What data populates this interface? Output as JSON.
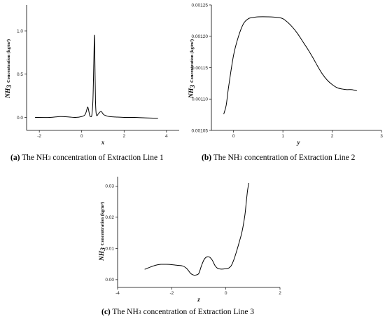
{
  "chart_data": [
    {
      "type": "line",
      "caption_letter": "(a)",
      "caption_pre": "The NH",
      "caption_sub": "3",
      "caption_post": " concentration of Extraction Line 1",
      "xlabel": "x",
      "ylabel_main": "NH",
      "ylabel_sub": "3",
      "ylabel_rest": "Concentration (kg/m³)",
      "xlim": [
        -2.6,
        4.6
      ],
      "ylim": [
        -0.15,
        1.3
      ],
      "xticks": [
        -2,
        0,
        2,
        4
      ],
      "yticks": [
        0.0,
        0.5,
        1.0
      ],
      "ytick_labels": [
        "0.0",
        "0.5",
        "1.0"
      ],
      "series": [
        {
          "x": [
            -2.2,
            -1.5,
            -1.0,
            -0.6,
            -0.3,
            0.0,
            0.15,
            0.22,
            0.28,
            0.33,
            0.38,
            0.43,
            0.48,
            0.53,
            0.57,
            0.6,
            0.62,
            0.65,
            0.68,
            0.72,
            0.78,
            0.85,
            0.92,
            0.98,
            1.05,
            1.15,
            1.3,
            1.6,
            2.0,
            2.5,
            3.0,
            3.6
          ],
          "y": [
            0.0,
            0.0,
            0.01,
            0.005,
            0.0,
            0.01,
            0.03,
            0.07,
            0.12,
            0.08,
            0.02,
            0.01,
            0.03,
            0.2,
            0.62,
            0.95,
            0.7,
            0.2,
            0.05,
            0.02,
            0.04,
            0.06,
            0.07,
            0.05,
            0.03,
            0.02,
            0.01,
            0.005,
            0.0,
            0.0,
            -0.005,
            -0.01
          ]
        }
      ]
    },
    {
      "type": "line",
      "caption_letter": "(b)",
      "caption_pre": "The NH",
      "caption_sub": "3",
      "caption_post": " concentration of Extraction Line 2",
      "xlabel": "y",
      "ylabel_main": "NH",
      "ylabel_sub": "3",
      "ylabel_rest": "Concentration (kg/m³)",
      "xlim": [
        -0.45,
        3.0
      ],
      "ylim": [
        0.00105,
        0.00125
      ],
      "xticks": [
        0,
        1,
        2,
        3
      ],
      "yticks": [
        0.00105,
        0.0011,
        0.00115,
        0.0012,
        0.00125
      ],
      "ytick_labels": [
        "0.00105",
        "0.00110",
        "0.00115",
        "0.00120",
        "0.00125"
      ],
      "series": [
        {
          "x": [
            -0.2,
            -0.15,
            -0.1,
            0.0,
            0.1,
            0.2,
            0.3,
            0.4,
            0.5,
            0.7,
            0.9,
            1.0,
            1.1,
            1.2,
            1.3,
            1.4,
            1.5,
            1.6,
            1.7,
            1.8,
            1.9,
            2.0,
            2.1,
            2.2,
            2.3,
            2.4,
            2.5
          ],
          "y": [
            0.001076,
            0.00109,
            0.00112,
            0.00117,
            0.0012,
            0.00122,
            0.001228,
            0.00123,
            0.001231,
            0.001231,
            0.00123,
            0.001228,
            0.001222,
            0.001214,
            0.001204,
            0.001192,
            0.00118,
            0.001167,
            0.001153,
            0.00114,
            0.00113,
            0.001123,
            0.001118,
            0.001116,
            0.001115,
            0.001115,
            0.001113
          ]
        }
      ]
    },
    {
      "type": "line",
      "caption_letter": "(c)",
      "caption_pre": "The NH",
      "caption_sub": "3",
      "caption_post": " concentration of Extraction Line 3",
      "xlabel": "z",
      "ylabel_main": "NH",
      "ylabel_sub": "3",
      "ylabel_rest": "Concentration (kg/m³)",
      "xlim": [
        -4.0,
        2.0
      ],
      "ylim": [
        -0.0025,
        0.033
      ],
      "xticks": [
        -4,
        -2,
        0,
        2
      ],
      "yticks": [
        0.0,
        0.01,
        0.02,
        0.03
      ],
      "ytick_labels": [
        "0.00",
        "0.01",
        "0.02",
        "0.03"
      ],
      "series": [
        {
          "x": [
            -3.0,
            -2.8,
            -2.6,
            -2.4,
            -2.2,
            -2.0,
            -1.8,
            -1.6,
            -1.45,
            -1.3,
            -1.2,
            -1.1,
            -1.0,
            -0.9,
            -0.8,
            -0.7,
            -0.6,
            -0.5,
            -0.4,
            -0.3,
            -0.2,
            -0.1,
            0.0,
            0.1,
            0.2,
            0.3,
            0.4,
            0.5,
            0.6,
            0.7,
            0.75,
            0.8,
            0.85
          ],
          "y": [
            0.0033,
            0.004,
            0.0046,
            0.0049,
            0.0049,
            0.0048,
            0.0046,
            0.0044,
            0.0036,
            0.002,
            0.0015,
            0.0015,
            0.002,
            0.0045,
            0.0065,
            0.0073,
            0.0072,
            0.0062,
            0.0045,
            0.0036,
            0.0034,
            0.0034,
            0.0035,
            0.0037,
            0.0045,
            0.0065,
            0.0092,
            0.0122,
            0.0155,
            0.0205,
            0.0245,
            0.0285,
            0.031
          ]
        }
      ]
    }
  ]
}
